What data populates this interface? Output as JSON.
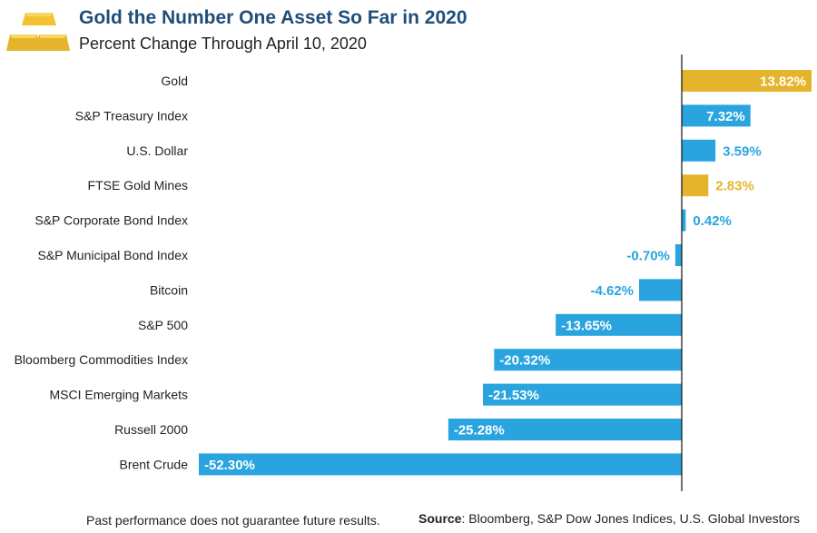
{
  "header": {
    "title": "Gold the Number One Asset So Far in 2020",
    "subtitle": "Percent Change Through April 10, 2020",
    "logo_icon": "gold-bars-icon"
  },
  "colors": {
    "gold": "#e4b52c",
    "blue": "#29a4df",
    "title": "#1f4e79",
    "axis": "#111111"
  },
  "chart_data": {
    "type": "bar",
    "orientation": "horizontal",
    "title": "Gold the Number One Asset So Far in 2020",
    "subtitle": "Percent Change Through April 10, 2020",
    "xlabel": "",
    "ylabel": "",
    "unit": "%",
    "xlim": [
      -52.3,
      13.82
    ],
    "grid": false,
    "categories": [
      "Gold",
      "S&P Treasury Index",
      "U.S. Dollar",
      "FTSE Gold Mines",
      "S&P Corporate Bond Index",
      "S&P Municipal Bond Index",
      "Bitcoin",
      "S&P 500",
      "Bloomberg Commodities Index",
      "MSCI Emerging Markets",
      "Russell 2000",
      "Brent Crude"
    ],
    "values": [
      13.82,
      7.32,
      3.59,
      2.83,
      0.42,
      -0.7,
      -4.62,
      -13.65,
      -20.32,
      -21.53,
      -25.28,
      -52.3
    ],
    "labels": [
      "13.82%",
      "7.32%",
      "3.59%",
      "2.83%",
      "0.42%",
      "-0.70%",
      "-4.62%",
      "-13.65%",
      "-20.32%",
      "-21.53%",
      "-25.28%",
      "-52.30%"
    ],
    "highlight": [
      true,
      false,
      false,
      true,
      false,
      false,
      false,
      false,
      false,
      false,
      false,
      false
    ]
  },
  "footer": {
    "disclaimer": "Past performance does not guarantee future results.",
    "source_label": "Source",
    "source_text": ": Bloomberg, S&P Dow Jones Indices, U.S. Global Investors"
  }
}
